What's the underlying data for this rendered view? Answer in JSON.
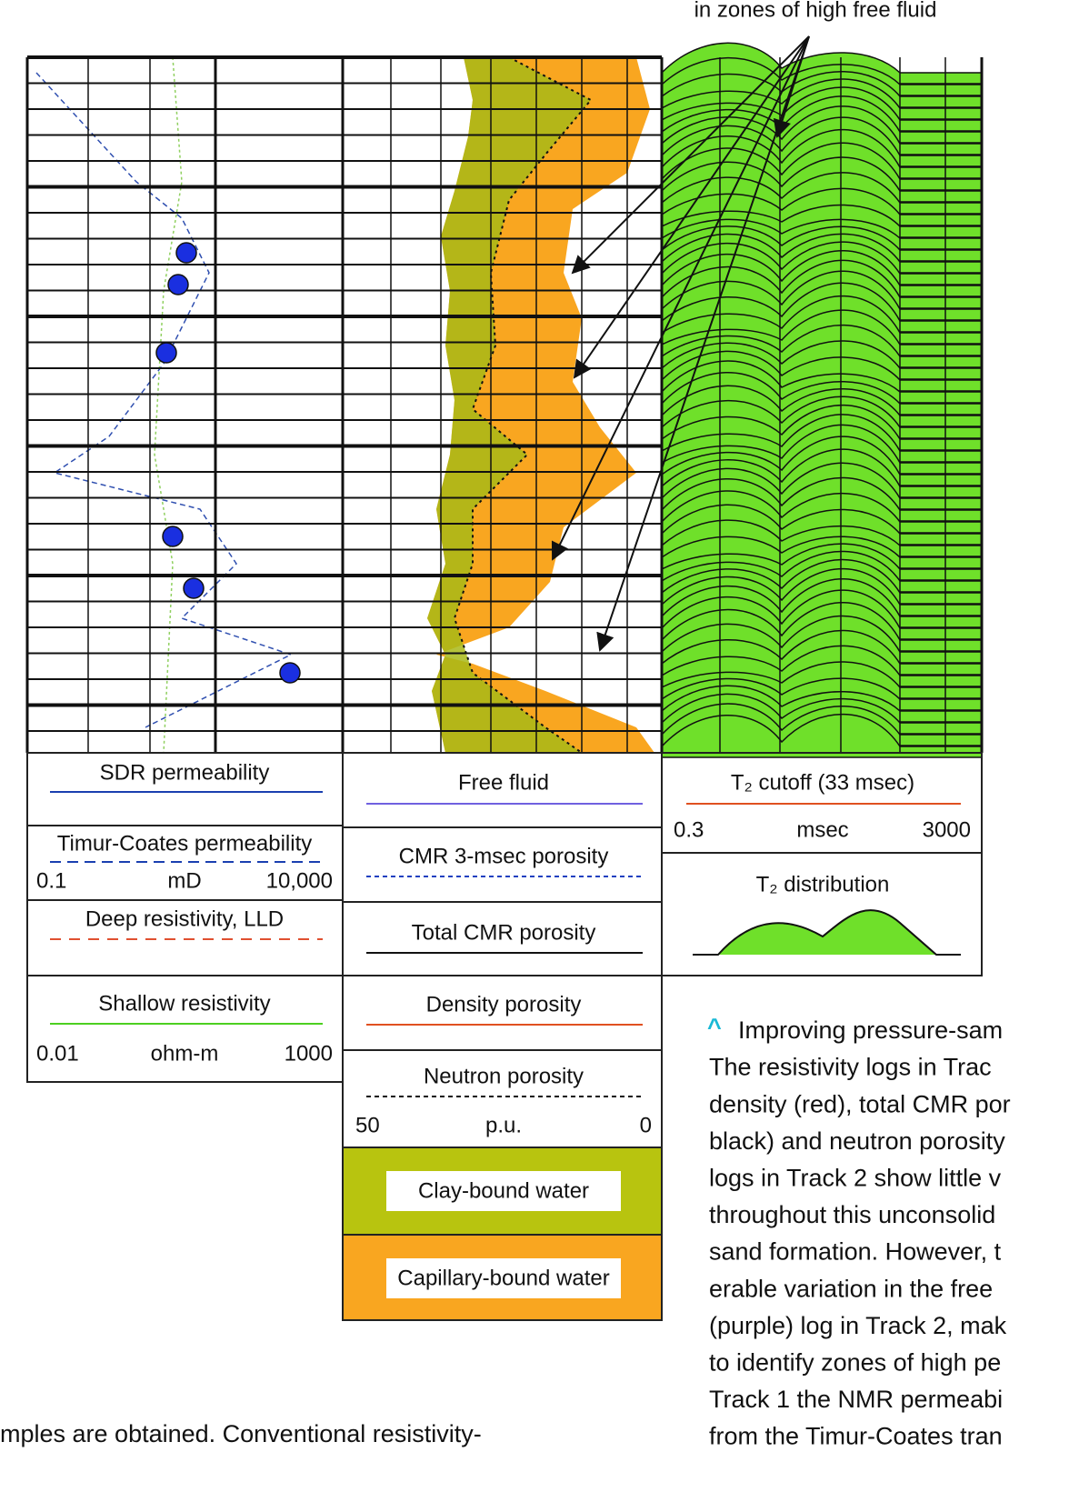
{
  "annotation": "in zones of high free fluid",
  "track1_legend": {
    "sdr": "SDR permeability",
    "timur": "Timur-Coates permeability",
    "perm_scale": [
      "0.1",
      "mD",
      "10,000"
    ],
    "deep": "Deep resistivity, LLD",
    "shallow": "Shallow resistivity",
    "res_scale": [
      "0.01",
      "ohm-m",
      "1000"
    ]
  },
  "track2_legend": {
    "free_fluid": "Free fluid",
    "cmr3": "CMR 3-msec porosity",
    "total_cmr": "Total CMR porosity",
    "density": "Density porosity",
    "neutron": "Neutron porosity",
    "por_scale": [
      "50",
      "p.u.",
      "0"
    ],
    "clay": "Clay-bound water",
    "capillary": "Capillary-bound water"
  },
  "track3_legend": {
    "cutoff": "T₂ cutoff (33 msec)",
    "t2_scale": [
      "0.3",
      "msec",
      "3000"
    ],
    "distribution": "T₂ distribution"
  },
  "caption": {
    "marker": "^",
    "lines": [
      "Improving pressure-sam",
      "The resistivity logs in Trac",
      "density (red), total CMR por",
      "black) and neutron porosity",
      "logs in Track 2 show little v",
      "throughout this unconsolid",
      "sand formation. However, t",
      "erable variation in the free",
      "(purple) log in Track 2, mak",
      "to identify zones of high pe",
      "Track 1 the NMR permeabi",
      "from the Timur-Coates tran"
    ]
  },
  "body_text": "mples are obtained. Conventional resistivity-"
}
